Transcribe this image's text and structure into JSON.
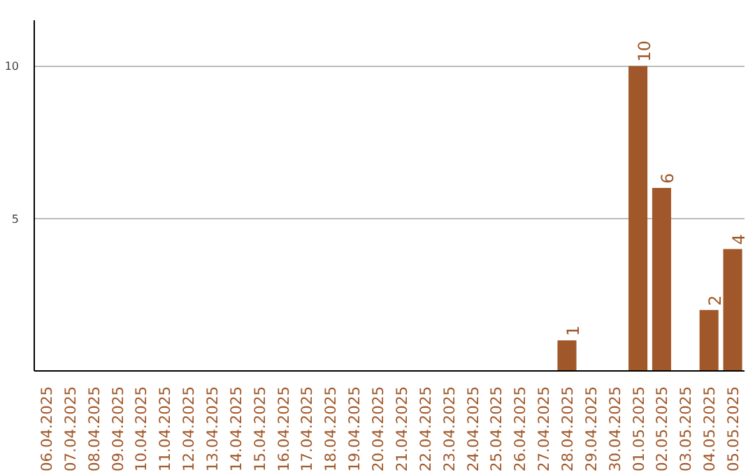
{
  "chart_data": {
    "type": "bar",
    "categories": [
      "06.04.2025",
      "07.04.2025",
      "08.04.2025",
      "09.04.2025",
      "10.04.2025",
      "11.04.2025",
      "12.04.2025",
      "13.04.2025",
      "14.04.2025",
      "15.04.2025",
      "16.04.2025",
      "17.04.2025",
      "18.04.2025",
      "19.04.2025",
      "20.04.2025",
      "21.04.2025",
      "22.04.2025",
      "23.04.2025",
      "24.04.2025",
      "25.04.2025",
      "26.04.2025",
      "27.04.2025",
      "28.04.2025",
      "29.04.2025",
      "30.04.2025",
      "01.05.2025",
      "02.05.2025",
      "03.05.2025",
      "04.05.2025",
      "05.05.2025"
    ],
    "values": [
      0,
      0,
      0,
      0,
      0,
      0,
      0,
      0,
      0,
      0,
      0,
      0,
      0,
      0,
      0,
      0,
      0,
      0,
      0,
      0,
      0,
      0,
      1,
      0,
      0,
      10,
      6,
      0,
      2,
      4
    ],
    "value_labels": [
      null,
      null,
      null,
      null,
      null,
      null,
      null,
      null,
      null,
      null,
      null,
      null,
      null,
      null,
      null,
      null,
      null,
      null,
      null,
      null,
      null,
      null,
      "1",
      null,
      null,
      "10",
      "6",
      null,
      "2",
      "4"
    ],
    "color": "#a0582a",
    "ylim": [
      0,
      11.5
    ],
    "yticks": [
      5,
      10
    ],
    "grid": "y"
  }
}
